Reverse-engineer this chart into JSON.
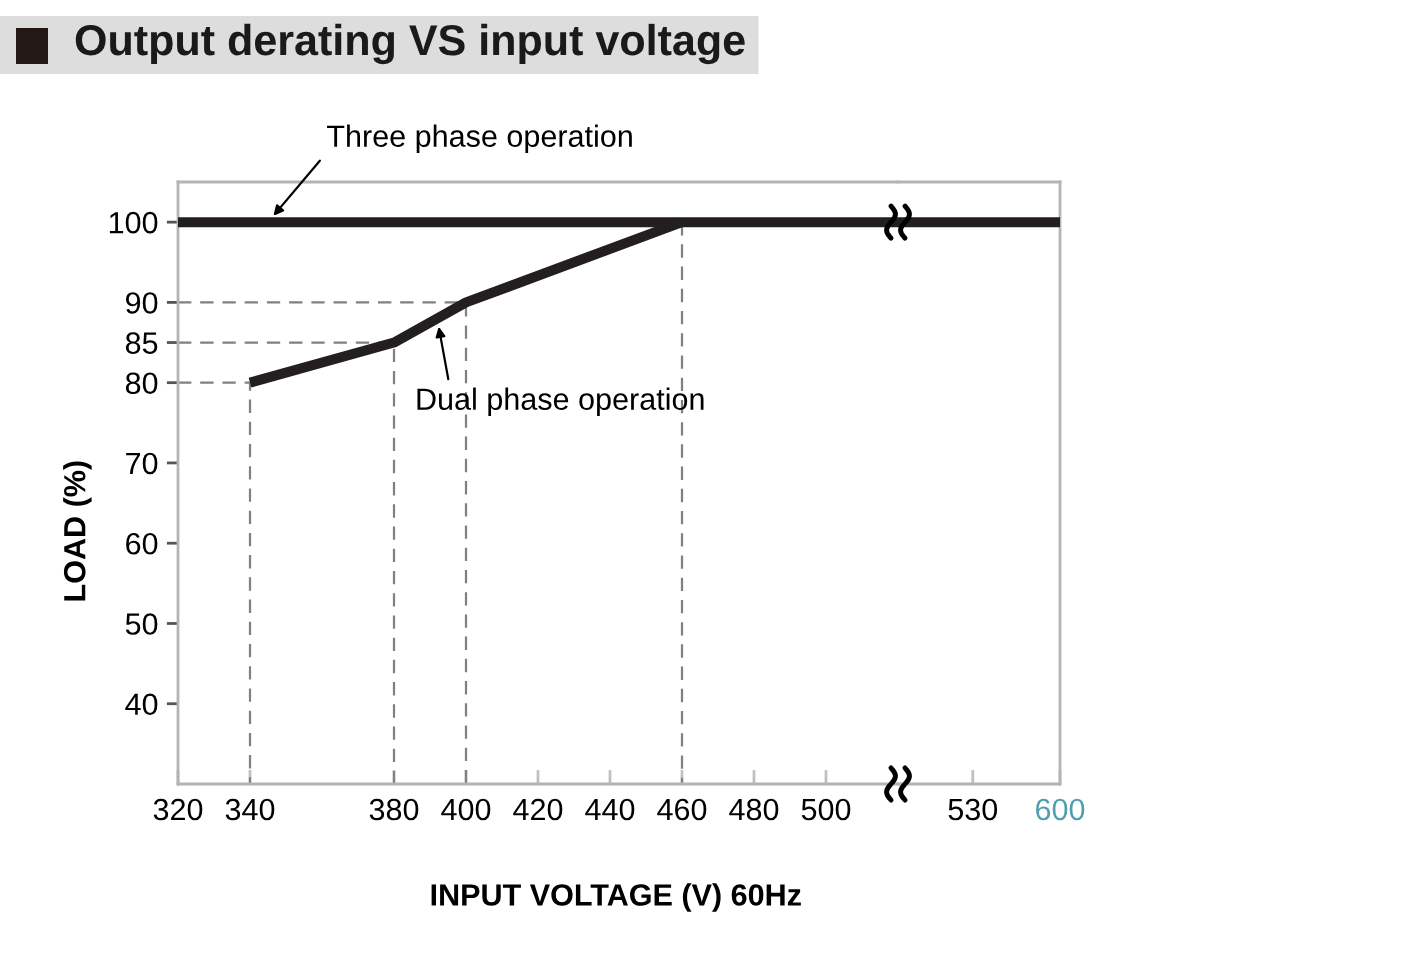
{
  "chart_data": [
    {
      "type": "line",
      "title": "Output derating VS input voltage",
      "xlabel": "INPUT VOLTAGE (V) 60Hz",
      "ylabel": "LOAD (%)",
      "xlim": [
        320,
        520
      ],
      "xticks": [
        320,
        340,
        380,
        400,
        420,
        440,
        460,
        480,
        500
      ],
      "ylim": [
        30,
        105
      ],
      "yticks": [
        40,
        50,
        60,
        70,
        80,
        85,
        90,
        100
      ],
      "series": [
        {
          "color": "#808080",
          "line_style": "dashed",
          "x": [
            320,
            340,
            340
          ],
          "values": [
            80,
            80,
            30
          ]
        },
        {
          "color": "#808080",
          "line_style": "dashed",
          "x": [
            320,
            380,
            380
          ],
          "values": [
            85,
            85,
            30
          ]
        },
        {
          "color": "#808080",
          "line_style": "dashed",
          "x": [
            320,
            400,
            400
          ],
          "values": [
            90,
            90,
            30
          ]
        },
        {
          "color": "#808080",
          "line_style": "dashed",
          "x": [
            460,
            460
          ],
          "values": [
            100,
            30
          ]
        },
        {
          "color": "#231f20",
          "x": [
            320,
            520
          ],
          "values": [
            100,
            100
          ]
        },
        {
          "color": "#231f20",
          "x": [
            340,
            380,
            400,
            460
          ],
          "values": [
            80,
            85,
            90,
            100
          ]
        }
      ],
      "annotations": [
        {
          "text": "Three phase operation",
          "x": 345,
          "y": 100
        },
        {
          "text": "Dual phase operation",
          "x": 392,
          "y": 88
        }
      ]
    },
    {
      "type": "line",
      "xlim": [
        470,
        600
      ],
      "xticks": [
        530,
        600
      ],
      "ylim": [
        30,
        105
      ],
      "tick_labels": "x",
      "series": [
        {
          "color": "#231f20",
          "x": [
            470,
            600
          ],
          "values": [
            100,
            100
          ]
        }
      ]
    }
  ]
}
